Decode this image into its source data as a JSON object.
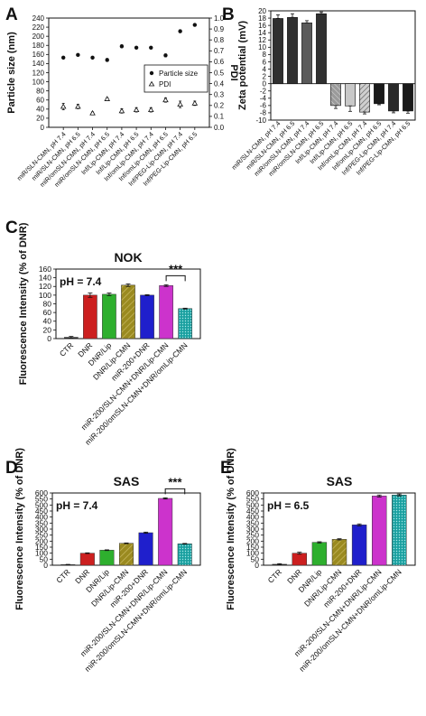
{
  "panels": {
    "A": {
      "letter": "A"
    },
    "B": {
      "letter": "B"
    },
    "C": {
      "letter": "C"
    },
    "D": {
      "letter": "D"
    },
    "E": {
      "letter": "E"
    }
  },
  "chart_data": [
    {
      "id": "A",
      "type": "scatter",
      "ylabel": "Particle size (nm)",
      "y2label": "PDI",
      "ylim": [
        0,
        240
      ],
      "y2lim": [
        0,
        1.0
      ],
      "yticks": [
        0,
        20,
        40,
        60,
        80,
        100,
        120,
        140,
        160,
        180,
        200,
        220,
        240
      ],
      "y2ticks": [
        "0.0",
        "0.1",
        "0.2",
        "0.3",
        "0.4",
        "0.5",
        "0.6",
        "0.7",
        "0.8",
        "0.9",
        "1.0"
      ],
      "categories": [
        "miR/SLN-CMN, pH 7.4",
        "miR/SLN-CMN, pH 6.5",
        "miR/omSLN-CMN, pH 7.4",
        "miR/omSLN-CMN, pH 6.5",
        "Inf/Lip-CMN, pH 7.4",
        "Inf/Lip-CMN, pH 6.5",
        "Inf/omLip-CMN, pH 7.4",
        "Inf/omLip-CMN, pH 6.5",
        "Inf/PEG-Lip-CMN, pH 7.4",
        "Inf/PEG-Lip-CMN, pH 6.5"
      ],
      "series": [
        {
          "name": "Particle size",
          "marker": "filled-circle",
          "axis": "left",
          "values": [
            153,
            159,
            153,
            148,
            178,
            175,
            175,
            158,
            211,
            225
          ],
          "errors": [
            2,
            2,
            2,
            3,
            3,
            2,
            2,
            3,
            3,
            2
          ]
        },
        {
          "name": "PDI",
          "marker": "open-triangle",
          "axis": "right",
          "values": [
            0.19,
            0.19,
            0.13,
            0.26,
            0.15,
            0.16,
            0.16,
            0.25,
            0.21,
            0.22
          ],
          "errors": [
            0.03,
            0.02,
            0.01,
            0.01,
            0.02,
            0.02,
            0.02,
            0.02,
            0.03,
            0.02
          ]
        }
      ],
      "legend": "center-right"
    },
    {
      "id": "B",
      "type": "bar",
      "ylabel": "Zeta potential (mV)",
      "ylim": [
        -10,
        20
      ],
      "yticks": [
        -10,
        -8,
        -6,
        -4,
        -2,
        0,
        2,
        4,
        6,
        8,
        10,
        12,
        14,
        16,
        18,
        20
      ],
      "categories": [
        "miR/SLN-CMN, pH 7.4",
        "miR/SLN-CMN, pH 6.5",
        "miR/omSLN-CMN, pH 7.4",
        "miR/omSLN-CMN, pH 6.5",
        "Inf/Lip-CMN, pH 7.4",
        "Inf/Lip-CMN, pH 6.5",
        "Inf/omLip-CMN, pH 7.4",
        "Inf/omLip-CMN, pH 6.5",
        "Inf/PEG-Lip-CMN, pH 7.4",
        "Inf/PEG-Lip-CMN, pH 6.5"
      ],
      "values": [
        17.9,
        18.2,
        16.7,
        19.2,
        -6.0,
        -6.1,
        -7.8,
        -5.5,
        -7.5,
        -7.5
      ],
      "errors": [
        1.0,
        1.0,
        0.6,
        0.5,
        0.8,
        1.5,
        0.5,
        0.3,
        0.5,
        0.6
      ],
      "colors": [
        "#303030",
        "#303030",
        "#5a5a5a",
        "#303030",
        "#dcdcdc",
        "#b8b8b8",
        "#909090",
        "#1a1a1a",
        "#1a1a1a",
        "#1a1a1a"
      ]
    },
    {
      "id": "C",
      "type": "bar",
      "title": "NOK",
      "annotation": "pH = 7.4",
      "significance": "***",
      "ylabel": "Fluorescence Intensity (% of DNR)",
      "ylim": [
        0,
        160
      ],
      "yticks": [
        0,
        20,
        40,
        60,
        80,
        100,
        120,
        140,
        160
      ],
      "categories": [
        "CTR",
        "DNR",
        "DNR/Lip",
        "DNR/Lip-CMN",
        "miR-200+DNR",
        "miR-200/SLN-CMN+DNR/Lip-CMN",
        "miR-200/omSLN-CMN+DNR/omLip-CMN"
      ],
      "values": [
        3,
        100,
        102,
        123,
        100,
        122,
        69
      ],
      "errors": [
        2,
        5,
        3,
        3,
        1,
        2,
        1
      ],
      "colors": [
        "#222222",
        "#cc1f1f",
        "#2eaf2e",
        "#9a8a20",
        "#1f1fcc",
        "#cc33cc",
        "#1aa0a0"
      ]
    },
    {
      "id": "D",
      "type": "bar",
      "title": "SAS",
      "annotation": "pH = 7.4",
      "significance": "***",
      "ylabel": "Fluorescence Intensity (% of DNR)",
      "ylim": [
        0,
        600
      ],
      "yticks": [
        0,
        50,
        100,
        150,
        200,
        250,
        300,
        350,
        400,
        450,
        500,
        550,
        600
      ],
      "categories": [
        "CTR",
        "DNR",
        "DNR/Lip",
        "DNR/Lip-CMN",
        "miR-200+DNR",
        "miR-200/SLN-CMN+DNR/Lip-CMN",
        "miR-200/omSLN-CMN+DNR/omLip-CMN"
      ],
      "values": [
        5,
        100,
        125,
        182,
        270,
        555,
        178
      ],
      "errors": [
        2,
        3,
        3,
        3,
        5,
        5,
        3
      ],
      "colors": [
        "#222222",
        "#cc1f1f",
        "#2eaf2e",
        "#9a8a20",
        "#1f1fcc",
        "#cc33cc",
        "#1aa0a0"
      ]
    },
    {
      "id": "E",
      "type": "bar",
      "title": "SAS",
      "annotation": "pH = 6.5",
      "ylabel": "Fluorescence Intensity (% of DNR)",
      "ylim": [
        0,
        600
      ],
      "yticks": [
        0,
        50,
        100,
        150,
        200,
        250,
        300,
        350,
        400,
        450,
        500,
        550,
        600
      ],
      "categories": [
        "CTR",
        "DNR",
        "DNR/Lip",
        "DNR/Lip-CMN",
        "miR-200+DNR",
        "miR-200/SLN-CMN+DNR/Lip-CMN",
        "miR-200/omSLN-CMN+DNR/omLip-CMN"
      ],
      "values": [
        8,
        100,
        190,
        215,
        335,
        575,
        583
      ],
      "errors": [
        5,
        8,
        5,
        5,
        8,
        8,
        8
      ],
      "colors": [
        "#222222",
        "#cc1f1f",
        "#2eaf2e",
        "#9a8a20",
        "#1f1fcc",
        "#cc33cc",
        "#1aa0a0"
      ]
    }
  ]
}
